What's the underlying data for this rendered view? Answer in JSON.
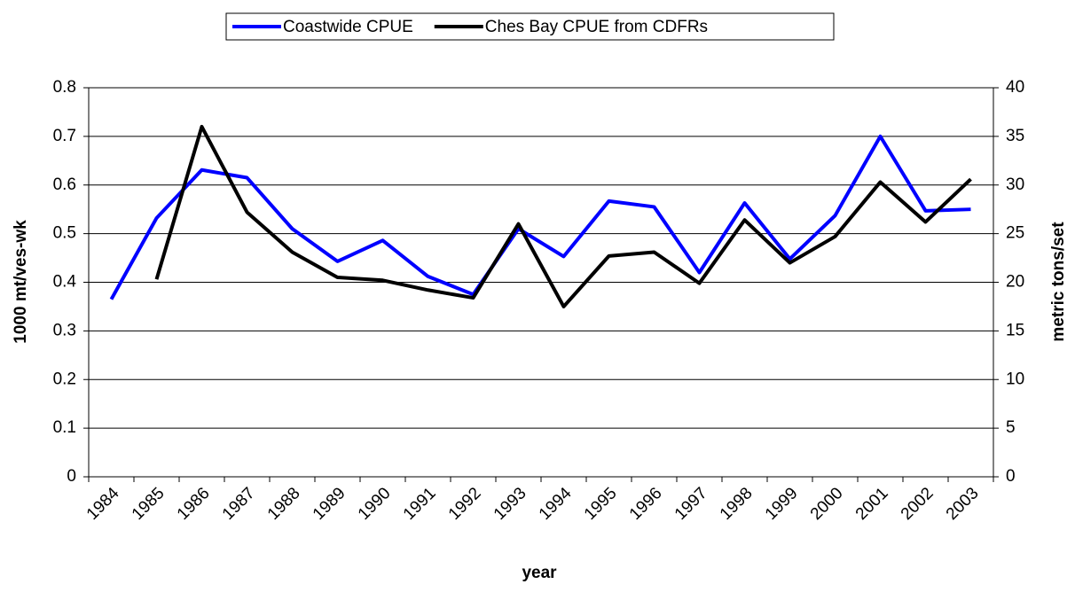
{
  "chart_data": {
    "type": "line",
    "x_label": "year",
    "y_label": "1000 mt/ves-wk",
    "y2_label": "metric tons/set",
    "categories": [
      "1984",
      "1985",
      "1986",
      "1987",
      "1988",
      "1989",
      "1990",
      "1991",
      "1992",
      "1993",
      "1994",
      "1995",
      "1996",
      "1997",
      "1998",
      "1999",
      "2000",
      "2001",
      "2002",
      "2003"
    ],
    "series": [
      {
        "name": "Coastwide CPUE",
        "color": "#0000ff",
        "values": [
          0.365,
          0.532,
          0.631,
          0.615,
          0.51,
          0.443,
          0.486,
          0.412,
          0.375,
          0.51,
          0.453,
          0.567,
          0.555,
          0.42,
          0.563,
          0.448,
          0.537,
          0.7,
          0.547,
          0.55
        ]
      },
      {
        "name": "Ches Bay CPUE from CDFRs",
        "color": "#000000",
        "axis": "y2",
        "values": [
          null,
          20.3,
          36,
          27.2,
          23.1,
          20.5,
          20.2,
          19.2,
          18.4,
          26,
          17.5,
          22.7,
          23.1,
          19.9,
          26.4,
          22,
          24.7,
          30.3,
          26.2,
          30.6
        ]
      }
    ],
    "ylim": [
      0,
      0.8
    ],
    "yticks": [
      0,
      0.1,
      0.2,
      0.3,
      0.4,
      0.5,
      0.6,
      0.7,
      0.8
    ],
    "y2lim": [
      0,
      40
    ],
    "y2ticks": [
      0,
      5,
      10,
      15,
      20,
      25,
      30,
      35,
      40
    ],
    "grid": true,
    "legend": "top"
  }
}
